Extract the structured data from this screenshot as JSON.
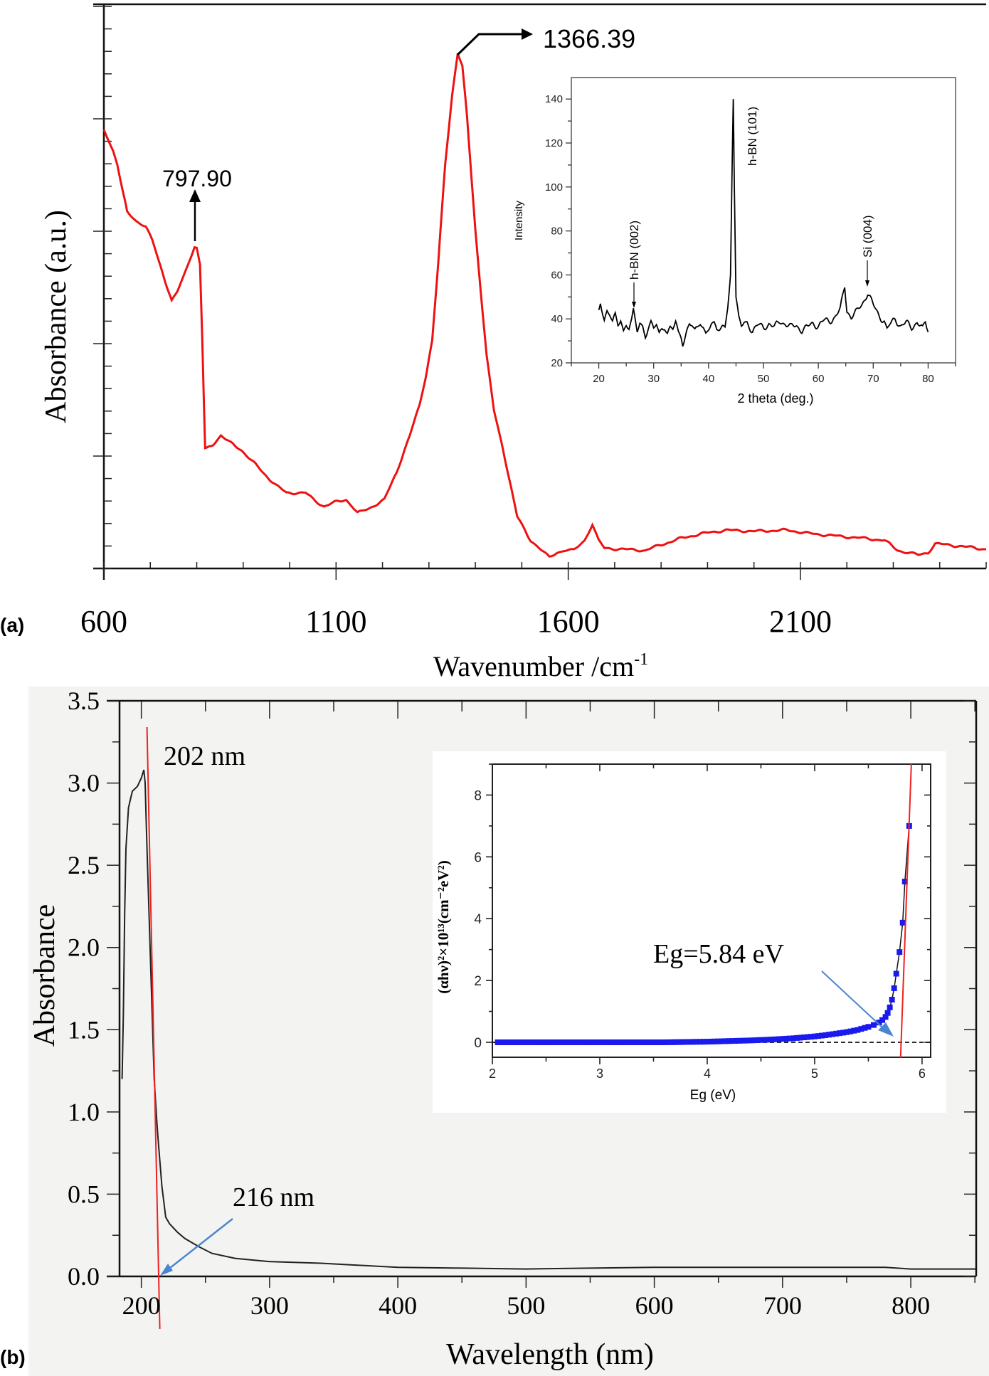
{
  "panel_labels": {
    "a": "(a)",
    "b": "(b)"
  },
  "colors": {
    "ftir": "#ee1111",
    "xrd": "#000000",
    "uv": "#222222",
    "fit_line": "#ee2222",
    "tauc_points": "#1a1aee",
    "pointer_arrow": "#4a86d0",
    "panel_b_background": "#f3f3f1"
  },
  "chart_data": [
    {
      "id": "ftir",
      "type": "line",
      "xlabel_main": "Wavenumber /cm",
      "xlabel_sup": "-1",
      "ylabel": "Absorbance (a.u.)",
      "xlim": [
        600,
        2500
      ],
      "ylim": [
        0,
        5
      ],
      "x_ticks": [
        600,
        1100,
        1600,
        2100
      ],
      "y_tick_labels": "none",
      "grid": false,
      "annotations": [
        {
          "text": "797.90",
          "x": 797.9
        },
        {
          "text": "1366.39",
          "x": 1366.39
        }
      ],
      "points": [
        [
          600,
          3.89
        ],
        [
          609,
          3.81
        ],
        [
          620,
          3.7
        ],
        [
          629,
          3.58
        ],
        [
          640,
          3.35
        ],
        [
          650,
          3.16
        ],
        [
          670,
          3.08
        ],
        [
          690,
          3.03
        ],
        [
          705,
          2.9
        ],
        [
          718,
          2.73
        ],
        [
          732,
          2.55
        ],
        [
          746,
          2.37
        ],
        [
          758,
          2.45
        ],
        [
          770,
          2.57
        ],
        [
          783,
          2.72
        ],
        [
          795,
          2.85
        ],
        [
          800,
          2.84
        ],
        [
          807,
          2.69
        ],
        [
          812,
          2.0
        ],
        [
          818,
          1.06
        ],
        [
          821,
          1.06
        ],
        [
          835,
          1.1
        ],
        [
          852,
          1.18
        ],
        [
          870,
          1.12
        ],
        [
          896,
          1.05
        ],
        [
          920,
          0.95
        ],
        [
          945,
          0.84
        ],
        [
          970,
          0.74
        ],
        [
          993,
          0.67
        ],
        [
          1034,
          0.67
        ],
        [
          1055,
          0.6
        ],
        [
          1074,
          0.55
        ],
        [
          1100,
          0.59
        ],
        [
          1122,
          0.61
        ],
        [
          1135,
          0.55
        ],
        [
          1146,
          0.49
        ],
        [
          1170,
          0.53
        ],
        [
          1204,
          0.61
        ],
        [
          1230,
          0.85
        ],
        [
          1259,
          1.18
        ],
        [
          1280,
          1.45
        ],
        [
          1293,
          1.7
        ],
        [
          1307,
          2.02
        ],
        [
          1320,
          2.7
        ],
        [
          1335,
          3.58
        ],
        [
          1350,
          4.2
        ],
        [
          1362,
          4.57
        ],
        [
          1372,
          4.45
        ],
        [
          1382,
          4.0
        ],
        [
          1400,
          3.0
        ],
        [
          1424,
          1.89
        ],
        [
          1440,
          1.4
        ],
        [
          1460,
          1.05
        ],
        [
          1490,
          0.46
        ],
        [
          1519,
          0.25
        ],
        [
          1540,
          0.17
        ],
        [
          1559,
          0.1
        ],
        [
          1575,
          0.14
        ],
        [
          1591,
          0.16
        ],
        [
          1612,
          0.16
        ],
        [
          1635,
          0.25
        ],
        [
          1652,
          0.39
        ],
        [
          1665,
          0.25
        ],
        [
          1678,
          0.18
        ],
        [
          1720,
          0.17
        ],
        [
          1766,
          0.16
        ],
        [
          1800,
          0.21
        ],
        [
          1845,
          0.27
        ],
        [
          1890,
          0.31
        ],
        [
          1940,
          0.34
        ],
        [
          2000,
          0.33
        ],
        [
          2071,
          0.34
        ],
        [
          2120,
          0.31
        ],
        [
          2172,
          0.29
        ],
        [
          2230,
          0.27
        ],
        [
          2281,
          0.25
        ],
        [
          2310,
          0.16
        ],
        [
          2354,
          0.12
        ],
        [
          2375,
          0.14
        ],
        [
          2390,
          0.22
        ],
        [
          2440,
          0.2
        ],
        [
          2500,
          0.17
        ]
      ]
    },
    {
      "id": "xrd_inset",
      "type": "line",
      "xlabel": "2 theta (deg.)",
      "ylabel": "Intensity",
      "xlim": [
        15,
        85
      ],
      "ylim": [
        20,
        150
      ],
      "x_ticks": [
        20,
        30,
        40,
        50,
        60,
        70,
        80
      ],
      "y_ticks": [
        20,
        40,
        60,
        80,
        100,
        120,
        140
      ],
      "grid": false,
      "annotations": [
        {
          "text": "h-BN (002)",
          "x": 26
        },
        {
          "text": "h-BN (101)",
          "x": 44.5
        },
        {
          "text": "Si (004)",
          "x": 69
        }
      ],
      "points": [
        [
          20,
          44
        ],
        [
          20.3,
          48
        ],
        [
          21,
          40
        ],
        [
          21.5,
          44
        ],
        [
          22,
          42
        ],
        [
          22.5,
          38
        ],
        [
          23,
          41
        ],
        [
          23.5,
          37
        ],
        [
          24,
          40
        ],
        [
          24.5,
          35
        ],
        [
          25,
          38
        ],
        [
          25.5,
          36
        ],
        [
          26,
          39
        ],
        [
          26.3,
          43
        ],
        [
          27,
          34
        ],
        [
          27.5,
          38
        ],
        [
          28,
          37
        ],
        [
          28.5,
          33
        ],
        [
          29,
          36
        ],
        [
          29.5,
          38
        ],
        [
          30,
          35
        ],
        [
          30.5,
          37
        ],
        [
          31,
          33
        ],
        [
          31.5,
          36
        ],
        [
          32,
          37
        ],
        [
          32.5,
          34
        ],
        [
          33,
          36
        ],
        [
          33.5,
          35
        ],
        [
          34,
          38
        ],
        [
          34.5,
          33
        ],
        [
          35,
          32
        ],
        [
          35.3,
          29
        ],
        [
          36,
          35
        ],
        [
          36.5,
          38
        ],
        [
          37,
          37
        ],
        [
          37.5,
          34
        ],
        [
          38,
          35
        ],
        [
          38.5,
          38
        ],
        [
          39,
          37
        ],
        [
          39.5,
          34
        ],
        [
          40,
          36
        ],
        [
          40.5,
          38
        ],
        [
          41,
          37
        ],
        [
          41.5,
          34
        ],
        [
          42,
          35
        ],
        [
          42.5,
          37
        ],
        [
          43,
          37
        ],
        [
          43.5,
          47
        ],
        [
          44,
          60
        ],
        [
          44.3,
          110
        ],
        [
          44.5,
          140
        ],
        [
          44.7,
          100
        ],
        [
          45,
          50
        ],
        [
          45.5,
          40
        ],
        [
          46,
          36
        ],
        [
          46.5,
          38
        ],
        [
          47,
          38
        ],
        [
          48,
          35
        ],
        [
          49,
          37
        ],
        [
          50,
          36
        ],
        [
          51,
          38
        ],
        [
          52,
          36
        ],
        [
          53,
          39
        ],
        [
          54,
          38
        ],
        [
          55,
          36
        ],
        [
          56,
          37
        ],
        [
          57,
          35
        ],
        [
          58,
          36
        ],
        [
          59,
          38
        ],
        [
          60,
          37
        ],
        [
          61,
          39
        ],
        [
          62,
          39
        ],
        [
          63,
          41
        ],
        [
          64,
          44
        ],
        [
          64.8,
          55
        ],
        [
          65.2,
          44
        ],
        [
          66,
          41
        ],
        [
          67,
          43
        ],
        [
          68,
          47
        ],
        [
          69,
          52
        ],
        [
          70,
          46
        ],
        [
          71,
          42
        ],
        [
          72,
          39
        ],
        [
          72.5,
          35
        ],
        [
          73,
          37
        ],
        [
          74,
          40
        ],
        [
          75,
          37
        ],
        [
          76,
          38
        ],
        [
          77,
          36
        ],
        [
          78,
          39
        ],
        [
          79,
          35
        ],
        [
          79.5,
          38
        ],
        [
          80,
          34
        ]
      ]
    },
    {
      "id": "uv_vis",
      "type": "line",
      "xlabel": "Wavelength (nm)",
      "ylabel": "Absorbance",
      "xlim": [
        183,
        851
      ],
      "ylim": [
        0,
        3.5
      ],
      "x_ticks": [
        200,
        300,
        400,
        500,
        600,
        700,
        800
      ],
      "y_ticks": [
        "0.0",
        "0.5",
        "1.0",
        "1.5",
        "2.0",
        "2.5",
        "3.0",
        "3.5"
      ],
      "grid": false,
      "annotations": [
        {
          "text": "202 nm",
          "x": 202
        },
        {
          "text": "216 nm",
          "x": 216
        }
      ],
      "tangent_line": [
        [
          204.4,
          3.34
        ],
        [
          214.4,
          -0.32
        ]
      ],
      "points": [
        [
          185,
          1.2
        ],
        [
          186,
          1.6
        ],
        [
          187,
          2.2
        ],
        [
          188,
          2.6
        ],
        [
          190,
          2.85
        ],
        [
          193,
          2.95
        ],
        [
          197,
          2.98
        ],
        [
          200,
          3.03
        ],
        [
          202,
          3.08
        ],
        [
          203,
          3.0
        ],
        [
          204,
          2.7
        ],
        [
          206,
          2.2
        ],
        [
          208,
          1.7
        ],
        [
          210,
          1.2
        ],
        [
          212,
          0.95
        ],
        [
          213,
          0.84
        ],
        [
          216,
          0.55
        ],
        [
          219,
          0.36
        ],
        [
          222,
          0.32
        ],
        [
          228,
          0.27
        ],
        [
          234,
          0.23
        ],
        [
          245,
          0.18
        ],
        [
          255,
          0.14
        ],
        [
          273,
          0.11
        ],
        [
          300,
          0.09
        ],
        [
          340,
          0.08
        ],
        [
          400,
          0.055
        ],
        [
          451,
          0.05
        ],
        [
          500,
          0.045
        ],
        [
          550,
          0.05
        ],
        [
          600,
          0.055
        ],
        [
          700,
          0.055
        ],
        [
          780,
          0.055
        ],
        [
          800,
          0.045
        ],
        [
          851,
          0.045
        ]
      ]
    },
    {
      "id": "tauc_inset",
      "type": "scatter",
      "xlabel": "Eg (eV)",
      "ylabel": "(αhν)²×10¹³(cm⁻²eV²)",
      "xlim": [
        2,
        6.08
      ],
      "ylim": [
        -0.5,
        9
      ],
      "x_ticks": [
        2,
        3,
        4,
        5,
        6
      ],
      "y_ticks": [
        0,
        2,
        4,
        6,
        8
      ],
      "grid": false,
      "baseline": 0,
      "annotation": "Eg=5.84 eV",
      "fit_line": [
        [
          5.8,
          -0.5
        ],
        [
          5.9,
          9
        ]
      ],
      "points": [
        [
          2.05,
          0
        ],
        [
          2.2,
          0
        ],
        [
          2.4,
          0
        ],
        [
          2.6,
          0
        ],
        [
          2.8,
          0
        ],
        [
          3.0,
          0
        ],
        [
          3.2,
          0
        ],
        [
          3.4,
          0
        ],
        [
          3.6,
          0
        ],
        [
          3.8,
          0.01
        ],
        [
          4.0,
          0.02
        ],
        [
          4.2,
          0.04
        ],
        [
          4.4,
          0.06
        ],
        [
          4.6,
          0.09
        ],
        [
          4.8,
          0.13
        ],
        [
          5.0,
          0.19
        ],
        [
          5.1,
          0.23
        ],
        [
          5.2,
          0.28
        ],
        [
          5.3,
          0.33
        ],
        [
          5.4,
          0.4
        ],
        [
          5.5,
          0.5
        ],
        [
          5.55,
          0.56
        ],
        [
          5.6,
          0.64
        ],
        [
          5.63,
          0.72
        ],
        [
          5.66,
          0.82
        ],
        [
          5.68,
          0.95
        ],
        [
          5.7,
          1.13
        ],
        [
          5.72,
          1.38
        ],
        [
          5.74,
          1.75
        ],
        [
          5.76,
          2.22
        ],
        [
          5.79,
          2.92
        ],
        [
          5.82,
          3.87
        ],
        [
          5.84,
          5.2
        ],
        [
          5.88,
          7.0
        ]
      ]
    }
  ]
}
